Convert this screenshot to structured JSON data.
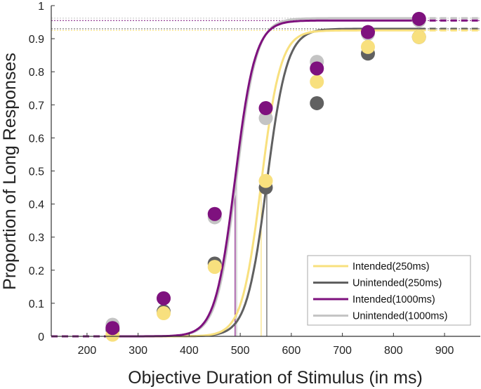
{
  "chart_data": {
    "type": "scatter",
    "xlabel": "Objective Duration of Stimulus (in ms)",
    "ylabel": "Proportion of Long Responses",
    "xlim": [
      130,
      970
    ],
    "ylim": [
      0,
      1
    ],
    "x_ticks": [
      "200",
      "300",
      "400",
      "500",
      "600",
      "700",
      "800",
      "900"
    ],
    "y_ticks": [
      "0",
      "0.1",
      "0.2",
      "0.3",
      "0.4",
      "0.5",
      "0.6",
      "0.7",
      "0.8",
      "0.9",
      "1"
    ],
    "x_tick_values": [
      200,
      300,
      400,
      500,
      600,
      700,
      800,
      900
    ],
    "y_tick_values": [
      0,
      0.1,
      0.2,
      0.3,
      0.4,
      0.5,
      0.6,
      0.7,
      0.8,
      0.9,
      1
    ],
    "legend_position": "bottom-right",
    "x": [
      250,
      350,
      450,
      550,
      650,
      750,
      850
    ],
    "fit_range": [
      250,
      850
    ],
    "series": [
      {
        "name": "Unintended(1000ms)",
        "color": "#c4c4c4",
        "values": [
          0.035,
          0.115,
          0.36,
          0.66,
          0.83,
          0.915,
          0.955
        ],
        "fit": {
          "pse": 493,
          "slope": 0.0123,
          "lower": 0.0,
          "upper": 0.962
        }
      },
      {
        "name": "Unintended(250ms)",
        "color": "#606060",
        "values": [
          0.02,
          0.075,
          0.22,
          0.45,
          0.705,
          0.855,
          0.905
        ],
        "fit": {
          "pse": 552,
          "slope": 0.0118,
          "lower": 0.0,
          "upper": 0.93
        }
      },
      {
        "name": "Intended(250ms)",
        "color": "#f8e07e",
        "values": [
          0.005,
          0.07,
          0.21,
          0.47,
          0.77,
          0.875,
          0.905
        ],
        "fit": {
          "pse": 541,
          "slope": 0.0122,
          "lower": 0.0,
          "upper": 0.925
        }
      },
      {
        "name": "Intended(1000ms)",
        "color": "#7e117e",
        "values": [
          0.025,
          0.115,
          0.37,
          0.69,
          0.81,
          0.92,
          0.96
        ],
        "fit": {
          "pse": 490,
          "slope": 0.0122,
          "lower": 0.0,
          "upper": 0.955
        }
      }
    ],
    "legend_order": [
      "Intended(250ms)",
      "Unintended(250ms)",
      "Intended(1000ms)",
      "Unintended(1000ms)"
    ]
  }
}
